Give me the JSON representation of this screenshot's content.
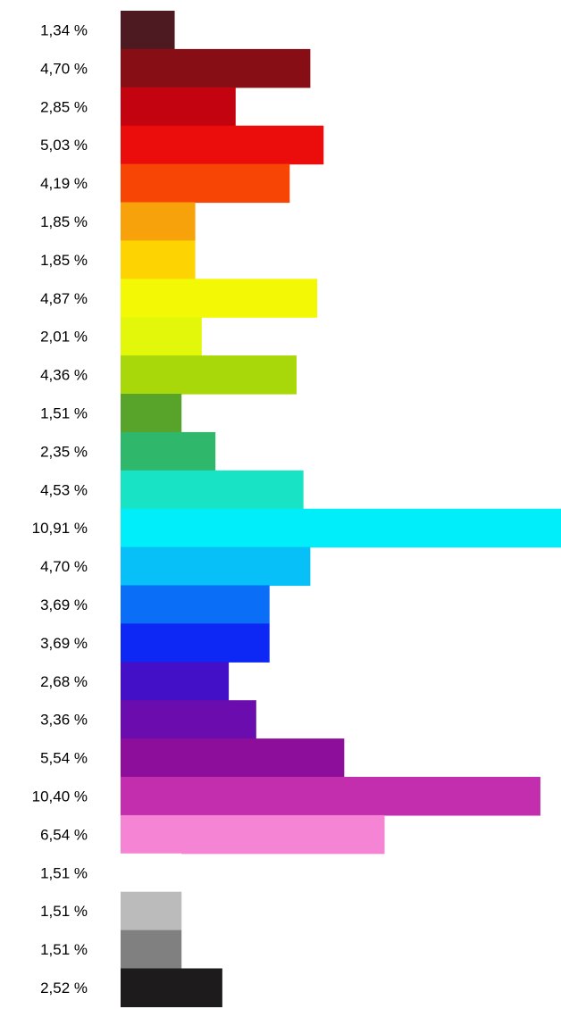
{
  "chart_data": {
    "type": "bar",
    "orientation": "horizontal",
    "title": "",
    "xlabel": "",
    "ylabel": "",
    "grid": false,
    "legend": "none",
    "xlim": [
      0,
      10.91
    ],
    "categories": [
      "1,34 %",
      "4,70 %",
      "2,85 %",
      "5,03 %",
      "4,19 %",
      "1,85 %",
      "1,85 %",
      "4,87 %",
      "2,01 %",
      "4,36 %",
      "1,51 %",
      "2,35 %",
      "4,53 %",
      "10,91 %",
      "4,70 %",
      "3,69 %",
      "3,69 %",
      "2,68 %",
      "3,36 %",
      "5,54 %",
      "10,40 %",
      "6,54 %",
      "1,51 %",
      "1,51 %",
      "1,51 %",
      "2,52 %"
    ],
    "values": [
      1.34,
      4.7,
      2.85,
      5.03,
      4.19,
      1.85,
      1.85,
      4.87,
      2.01,
      4.36,
      1.51,
      2.35,
      4.53,
      10.91,
      4.7,
      3.69,
      3.69,
      2.68,
      3.36,
      5.54,
      10.4,
      6.54,
      1.51,
      1.51,
      1.51,
      2.52
    ],
    "colors": [
      "#4e1a22",
      "#880e16",
      "#c30410",
      "#eb0c0c",
      "#f74506",
      "#f7a20a",
      "#fdd402",
      "#f3f804",
      "#e3f70a",
      "#a9d80a",
      "#58a42a",
      "#2fb86c",
      "#18e3c4",
      "#00eefa",
      "#08c0f8",
      "#0a6ef6",
      "#0d27f4",
      "#4310c8",
      "#6a0cae",
      "#8e0e9c",
      "#c22ead",
      "#f585d4",
      "#ffffff",
      "#bbbbbb",
      "#808080",
      "#1e1b1c"
    ]
  }
}
